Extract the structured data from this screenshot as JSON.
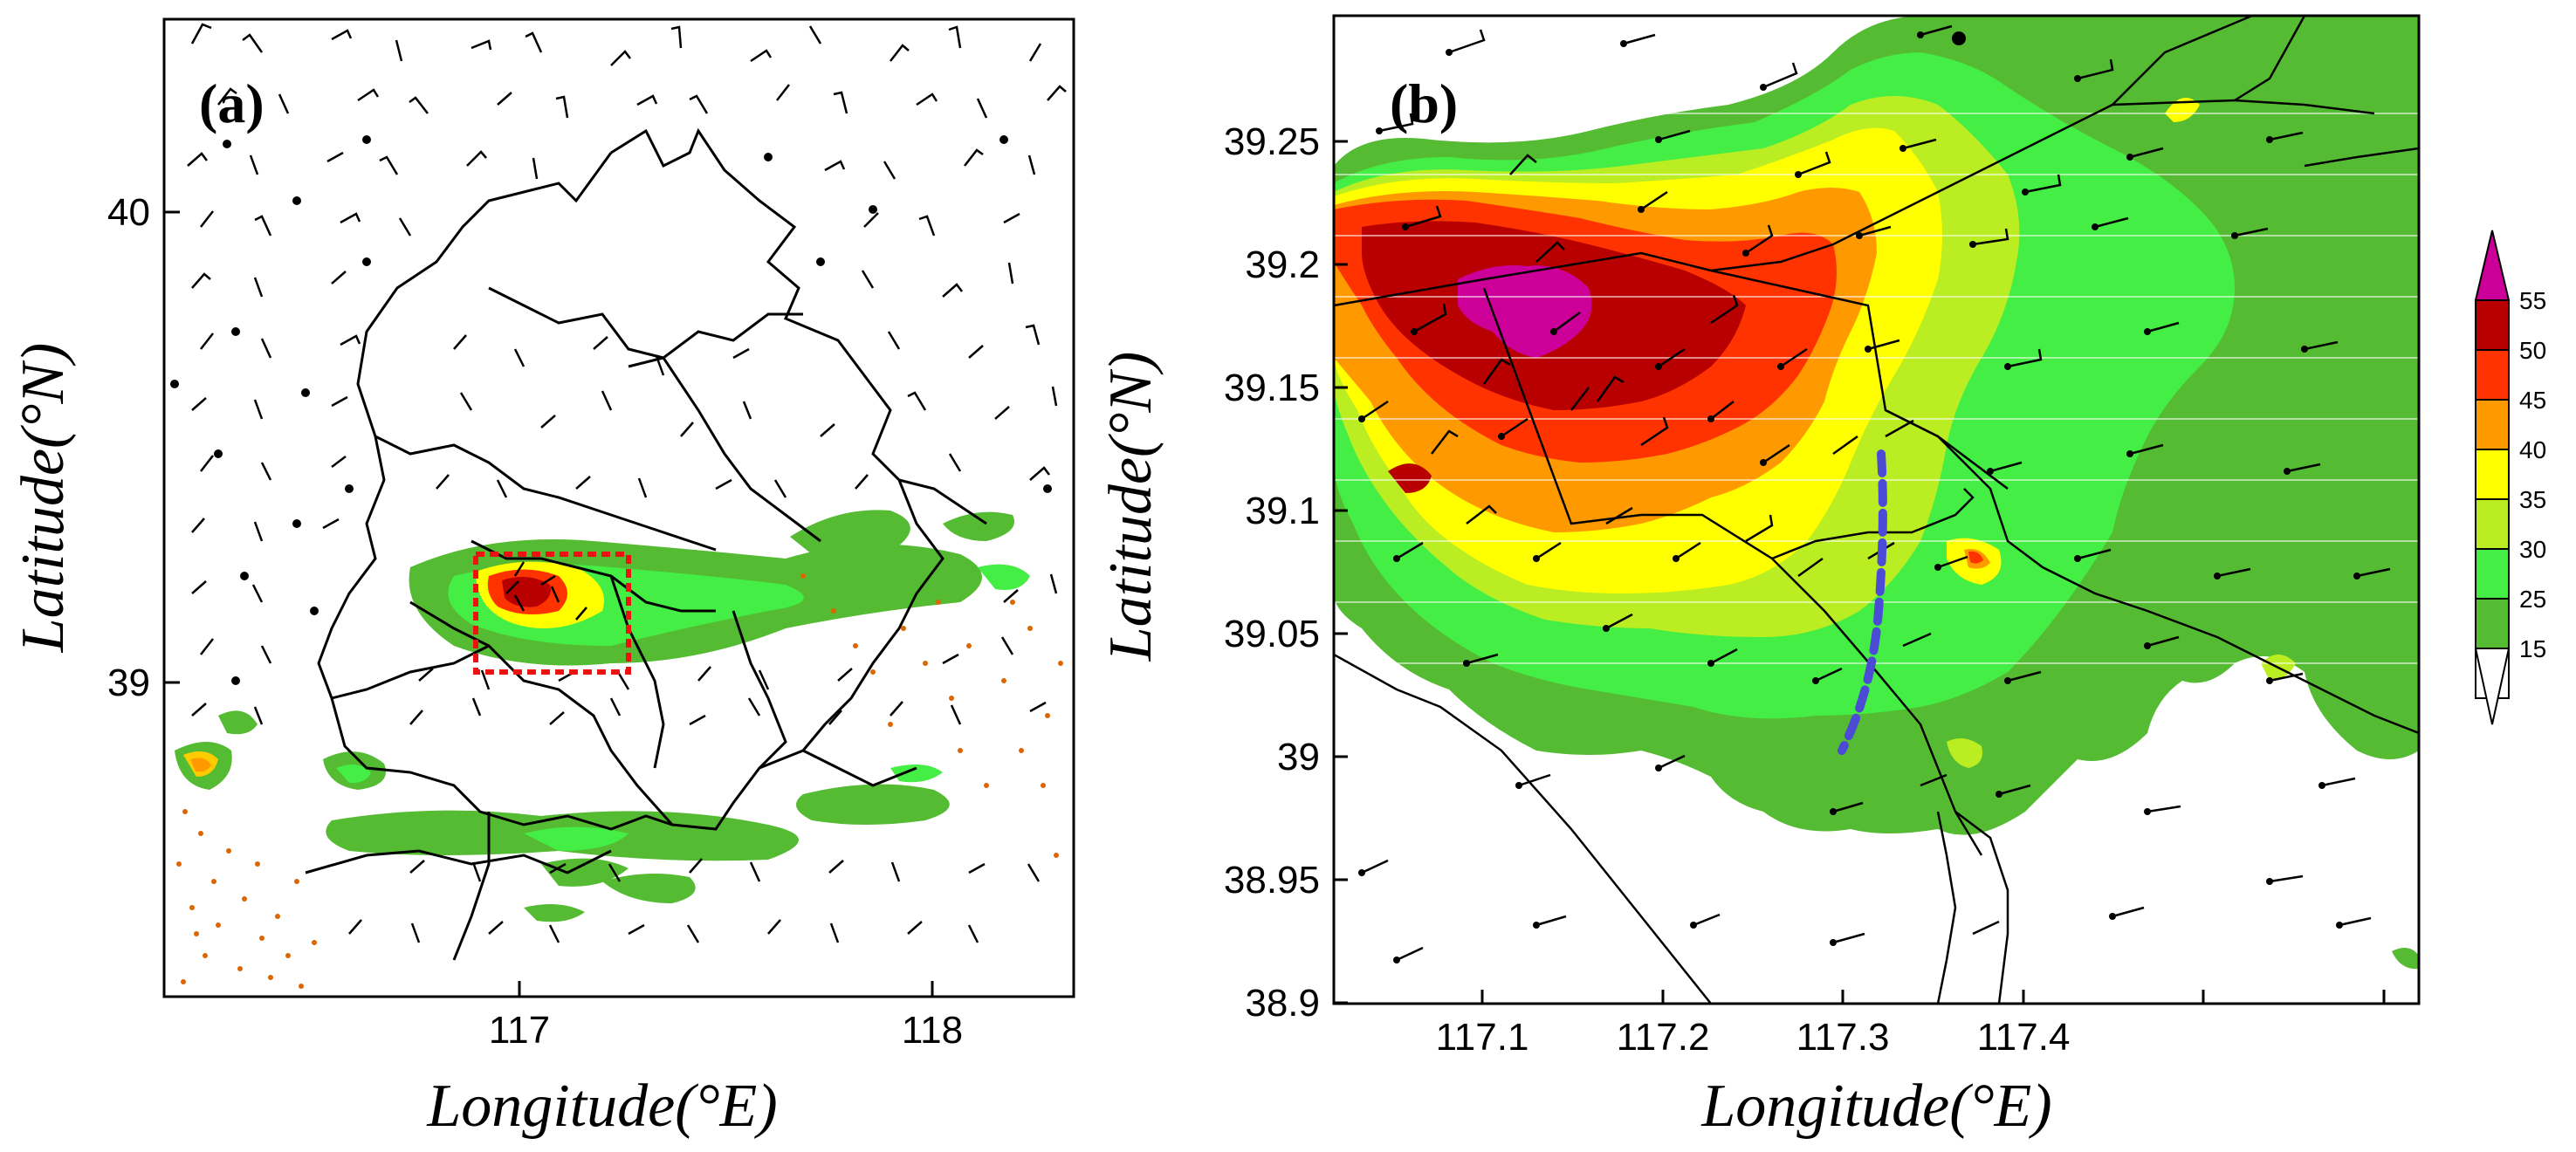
{
  "panel_a": {
    "label": "(a)",
    "x_ticks": [
      "117",
      "118"
    ],
    "y_ticks": [
      "40",
      "39"
    ],
    "xlabel": "Longitude(°E)",
    "ylabel": "Latitude(°N)"
  },
  "panel_b": {
    "label": "(b)",
    "x_ticks": [
      "117.1",
      "117.2",
      "117.3",
      "117.4"
    ],
    "y_ticks": [
      "39.25",
      "39.2",
      "39.15",
      "39.1",
      "39.05",
      "39",
      "38.95",
      "38.9"
    ],
    "xlabel": "Longitude(°E)",
    "ylabel": "Latitude(°N)"
  },
  "colorbar": {
    "ticks": [
      "55",
      "50",
      "45",
      "40",
      "35",
      "30",
      "25",
      "15"
    ],
    "colors": [
      "#cc0099",
      "#b80000",
      "#ff3300",
      "#ff9900",
      "#ffff00",
      "#bbee22",
      "#44ee44",
      "#55bb33",
      "#ffffff"
    ]
  }
}
